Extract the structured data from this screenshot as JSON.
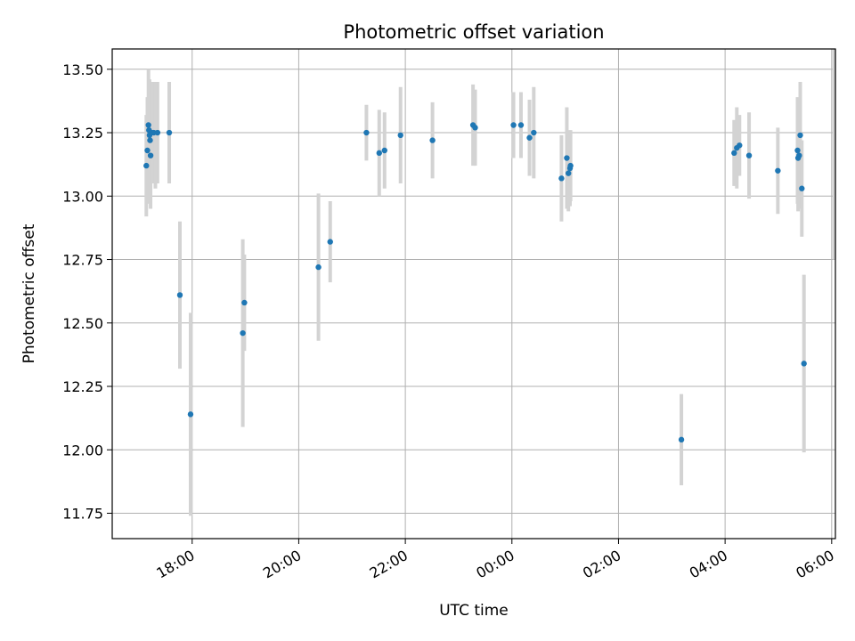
{
  "chart_data": {
    "type": "scatter",
    "title": "Photometric offset variation",
    "xlabel": "UTC time",
    "ylabel": "Photometric offset",
    "x_unit": "hours since 00:00 UTC (negative = previous evening)",
    "xlim": [
      -7.5,
      6.07
    ],
    "ylim": [
      11.65,
      13.58
    ],
    "x_ticks": [
      {
        "value": -6,
        "label": "18:00"
      },
      {
        "value": -4,
        "label": "20:00"
      },
      {
        "value": -2,
        "label": "22:00"
      },
      {
        "value": 0,
        "label": "00:00"
      },
      {
        "value": 2,
        "label": "02:00"
      },
      {
        "value": 4,
        "label": "04:00"
      },
      {
        "value": 6,
        "label": "06:00"
      }
    ],
    "y_ticks": [
      {
        "value": 11.75,
        "label": "11.75"
      },
      {
        "value": 12.0,
        "label": "12.00"
      },
      {
        "value": 12.25,
        "label": "12.25"
      },
      {
        "value": 12.5,
        "label": "12.50"
      },
      {
        "value": 12.75,
        "label": "12.75"
      },
      {
        "value": 13.0,
        "label": "13.00"
      },
      {
        "value": 13.25,
        "label": "13.25"
      },
      {
        "value": 13.5,
        "label": "13.50"
      }
    ],
    "grid": true,
    "colors": {
      "marker": "#1f77b4",
      "errorbar": "#d3d3d3",
      "grid": "#b0b0b0",
      "axes": "#000000"
    },
    "points": [
      {
        "x": -6.86,
        "y": 13.12,
        "err": 0.2
      },
      {
        "x": -6.84,
        "y": 13.18,
        "err": 0.21
      },
      {
        "x": -6.82,
        "y": 13.28,
        "err": 0.22
      },
      {
        "x": -6.81,
        "y": 13.26,
        "err": 0.2
      },
      {
        "x": -6.8,
        "y": 13.24,
        "err": 0.22
      },
      {
        "x": -6.79,
        "y": 13.22,
        "err": 0.2
      },
      {
        "x": -6.78,
        "y": 13.16,
        "err": 0.21
      },
      {
        "x": -6.76,
        "y": 13.25,
        "err": 0.2
      },
      {
        "x": -6.72,
        "y": 13.25,
        "err": 0.2
      },
      {
        "x": -6.65,
        "y": 13.25,
        "err": 0.2
      },
      {
        "x": -6.43,
        "y": 13.25,
        "err": 0.2
      },
      {
        "x": -6.23,
        "y": 12.61,
        "err": 0.29
      },
      {
        "x": -6.03,
        "y": 12.14,
        "err": 0.4
      },
      {
        "x": -5.05,
        "y": 12.46,
        "err": 0.37
      },
      {
        "x": -5.02,
        "y": 12.58,
        "err": 0.19
      },
      {
        "x": -3.63,
        "y": 12.72,
        "err": 0.29
      },
      {
        "x": -3.41,
        "y": 12.82,
        "err": 0.16
      },
      {
        "x": -2.73,
        "y": 13.25,
        "err": 0.11
      },
      {
        "x": -2.49,
        "y": 13.17,
        "err": 0.17
      },
      {
        "x": -2.39,
        "y": 13.18,
        "err": 0.15
      },
      {
        "x": -2.09,
        "y": 13.24,
        "err": 0.19
      },
      {
        "x": -1.49,
        "y": 13.22,
        "err": 0.15
      },
      {
        "x": -0.73,
        "y": 13.28,
        "err": 0.16
      },
      {
        "x": -0.69,
        "y": 13.27,
        "err": 0.15
      },
      {
        "x": 0.03,
        "y": 13.28,
        "err": 0.13
      },
      {
        "x": 0.17,
        "y": 13.28,
        "err": 0.13
      },
      {
        "x": 0.33,
        "y": 13.23,
        "err": 0.15
      },
      {
        "x": 0.41,
        "y": 13.25,
        "err": 0.18
      },
      {
        "x": 0.93,
        "y": 13.07,
        "err": 0.17
      },
      {
        "x": 1.03,
        "y": 13.15,
        "err": 0.2
      },
      {
        "x": 1.06,
        "y": 13.09,
        "err": 0.15
      },
      {
        "x": 1.09,
        "y": 13.11,
        "err": 0.15
      },
      {
        "x": 1.1,
        "y": 13.12,
        "err": 0.14
      },
      {
        "x": 3.18,
        "y": 12.04,
        "err": 0.18
      },
      {
        "x": 4.17,
        "y": 13.17,
        "err": 0.13
      },
      {
        "x": 4.22,
        "y": 13.19,
        "err": 0.16
      },
      {
        "x": 4.27,
        "y": 13.2,
        "err": 0.12
      },
      {
        "x": 4.45,
        "y": 13.16,
        "err": 0.17
      },
      {
        "x": 4.99,
        "y": 13.1,
        "err": 0.17
      },
      {
        "x": 5.36,
        "y": 13.18,
        "err": 0.21
      },
      {
        "x": 5.37,
        "y": 13.15,
        "err": 0.21
      },
      {
        "x": 5.39,
        "y": 13.16,
        "err": 0.21
      },
      {
        "x": 5.41,
        "y": 13.24,
        "err": 0.21
      },
      {
        "x": 5.44,
        "y": 13.03,
        "err": 0.19
      },
      {
        "x": 5.48,
        "y": 12.34,
        "err": 0.35
      }
    ],
    "extra_errorbars": [
      {
        "x": -6.69,
        "y": 13.24,
        "err": 0.21
      },
      {
        "x": 6.05,
        "y": 13.3,
        "err": 0.55
      }
    ]
  }
}
